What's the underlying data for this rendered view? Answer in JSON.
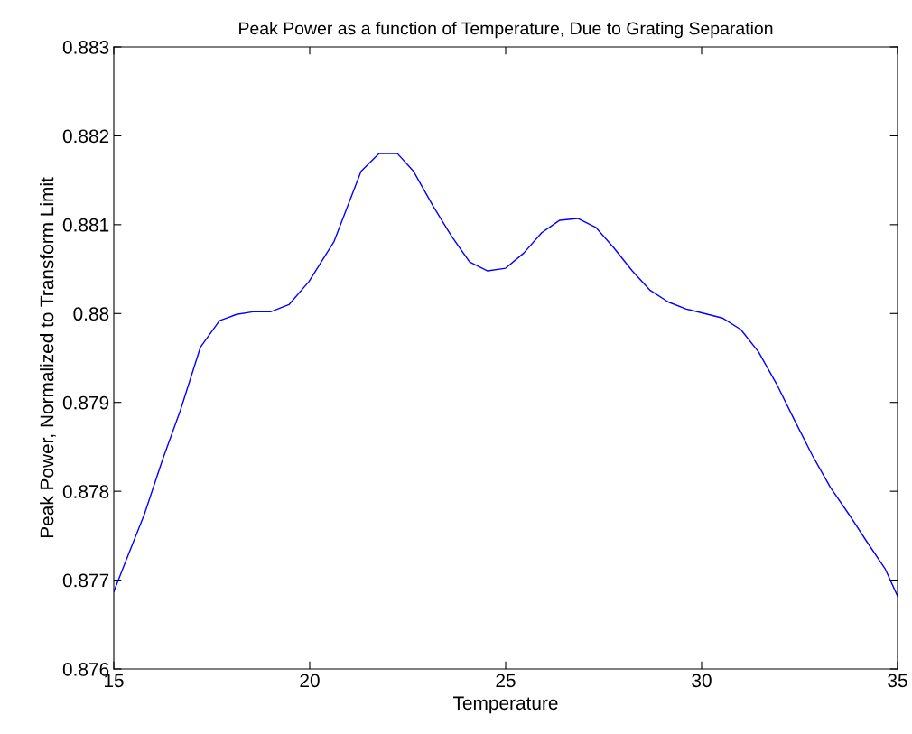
{
  "chart_data": {
    "type": "line",
    "title": "Peak Power as a function of Temperature, Due to Grating Separation",
    "xlabel": "Temperature",
    "ylabel": "Peak Power, Normalized to Transform Limit",
    "x": [
      15,
      15.32,
      15.78,
      16.24,
      16.7,
      17.21,
      17.7,
      18.13,
      18.55,
      19.0,
      19.47,
      19.98,
      20.62,
      21.31,
      21.77,
      22.24,
      22.65,
      23.16,
      23.62,
      24.08,
      24.54,
      25.0,
      25.46,
      25.92,
      26.38,
      26.84,
      27.3,
      27.76,
      28.23,
      28.69,
      29.15,
      29.61,
      30.07,
      30.53,
      31.0,
      31.45,
      31.91,
      32.37,
      32.83,
      33.29,
      33.76,
      34.22,
      34.68,
      35
    ],
    "series": [
      {
        "color": "#0000ff",
        "values": [
          0.87687,
          0.87723,
          0.87774,
          0.87835,
          0.87891,
          0.87962,
          0.87992,
          0.87999,
          0.88002,
          0.88002,
          0.8801,
          0.88036,
          0.88081,
          0.8816,
          0.8818,
          0.8818,
          0.8816,
          0.8812,
          0.88087,
          0.88058,
          0.88048,
          0.88051,
          0.88068,
          0.88091,
          0.88105,
          0.88107,
          0.88097,
          0.88074,
          0.88048,
          0.88026,
          0.88013,
          0.88005,
          0.88,
          0.87995,
          0.87982,
          0.87957,
          0.87921,
          0.8788,
          0.8784,
          0.87804,
          0.87774,
          0.87743,
          0.87713,
          0.87682
        ]
      }
    ],
    "xlim": [
      15,
      35
    ],
    "xticks": [
      15,
      20,
      25,
      30,
      35
    ],
    "ylim": [
      0.876,
      0.883
    ],
    "yticks": [
      0.876,
      0.877,
      0.878,
      0.879,
      0.88,
      0.881,
      0.882,
      0.883
    ],
    "grid": false,
    "marker": "none",
    "line_style": "solid"
  }
}
